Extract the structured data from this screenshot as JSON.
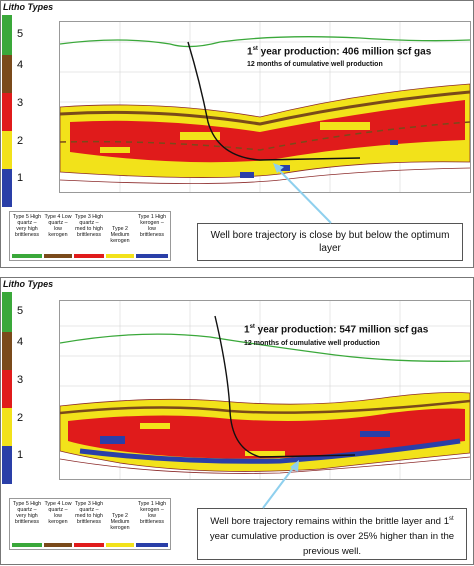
{
  "top_panel": {
    "litho_title": "Litho Types",
    "litho_numbers": [
      "5",
      "4",
      "3",
      "2",
      "1"
    ],
    "production_ordinal": "1",
    "production_sup": "st",
    "production_rest": " year production: 406 million scf gas",
    "subtitle": "12 months of cumulative well production",
    "callout": "Well bore trajectory is close by but below the optimum layer"
  },
  "bottom_panel": {
    "litho_title": "Litho Types",
    "litho_numbers": [
      "5",
      "4",
      "3",
      "2",
      "1"
    ],
    "production_ordinal": "1",
    "production_sup": "st",
    "production_rest": " year production: 547 million scf gas",
    "subtitle": "12 months of cumulative well production",
    "callout_line1": "Well bore trajectory remains within the brittle layer and",
    "callout_ord": "1",
    "callout_sup": "st",
    "callout_line2": " year cumulative production is over 25% higher than in the previous well."
  },
  "legend": {
    "type5": "Type 5 High quartz – very high brittleness",
    "type4": "Type 4 Low quartz – low kerogen",
    "type3": "Type 3 High quartz – med to high brittleness",
    "type2": "Type 2 Medium kerogen",
    "type1": "Type 1 High kerogen – low brittleness"
  },
  "colors": {
    "type5": "#3aa83a",
    "type4": "#7a4a1a",
    "type3": "#e01b1b",
    "type2": "#f2e21a",
    "type1": "#2a3fa8",
    "surface": "#3aa83a",
    "trajectory": "#111111",
    "arrow": "#8fd0ee"
  }
}
